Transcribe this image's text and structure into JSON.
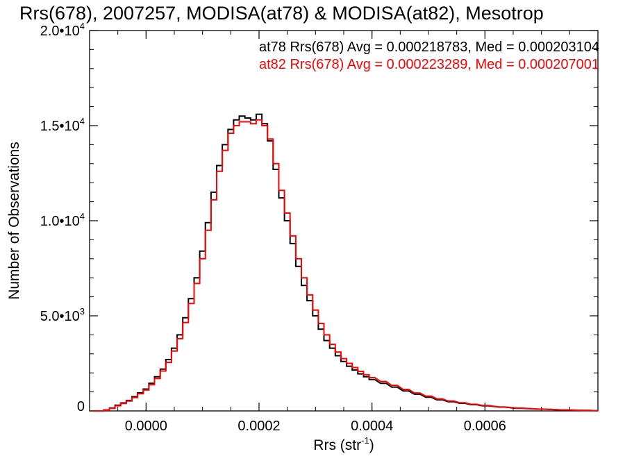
{
  "chart_data": {
    "type": "line",
    "title": "Rrs(678), 2007257, MODISA(at78) & MODISA(at82), Mesotrop",
    "xlabel": "Rrs (str",
    "xlabel_sup": "-1",
    "xlabel_tail": ")",
    "ylabel": "Number of Observations",
    "xlim": [
      -0.0001,
      0.0008
    ],
    "ylim": [
      0,
      20000
    ],
    "x_ticks": [
      {
        "value": 0.0,
        "label": "0.0000"
      },
      {
        "value": 0.0002,
        "label": "0.0002"
      },
      {
        "value": 0.0004,
        "label": "0.0004"
      },
      {
        "value": 0.0006,
        "label": "0.0006"
      }
    ],
    "y_ticks": [
      {
        "value": 0,
        "label": "0",
        "sup": ""
      },
      {
        "value": 5000,
        "label": "5.0•10",
        "sup": "3"
      },
      {
        "value": 10000,
        "label": "1.0•10",
        "sup": "4"
      },
      {
        "value": 15000,
        "label": "1.5•10",
        "sup": "4"
      },
      {
        "value": 20000,
        "label": "2.0•10",
        "sup": "4"
      }
    ],
    "legend_placement": "top-right",
    "grid": false,
    "series": [
      {
        "name": "at78",
        "color": "#000000",
        "annotation": "at78 Rrs(678) Avg = 0.000218783, Med = 0.000203104",
        "x": [
          -9e-05,
          -8e-05,
          -7e-05,
          -6e-05,
          -5e-05,
          -4e-05,
          -3e-05,
          -2e-05,
          -1e-05,
          0.0,
          1e-05,
          2e-05,
          3e-05,
          4e-05,
          5e-05,
          6e-05,
          7e-05,
          8e-05,
          9e-05,
          0.0001,
          0.00011,
          0.00012,
          0.00013,
          0.00014,
          0.00015,
          0.00016,
          0.00017,
          0.00018,
          0.00019,
          0.0002,
          0.00021,
          0.00022,
          0.00023,
          0.00024,
          0.00025,
          0.00026,
          0.00027,
          0.00028,
          0.00029,
          0.0003,
          0.00031,
          0.00032,
          0.00033,
          0.00034,
          0.00035,
          0.00036,
          0.00037,
          0.00038,
          0.00039,
          0.0004,
          0.00042,
          0.00044,
          0.00046,
          0.00048,
          0.0005,
          0.00052,
          0.00054,
          0.00056,
          0.00058,
          0.0006,
          0.00063,
          0.00066,
          0.0007,
          0.00074,
          0.00078,
          0.0008
        ],
        "y": [
          0,
          0,
          50,
          150,
          300,
          420,
          550,
          750,
          950,
          1150,
          1450,
          1800,
          2200,
          2700,
          3300,
          4000,
          4900,
          5900,
          7000,
          8400,
          9900,
          11500,
          12900,
          14000,
          14800,
          15300,
          15500,
          15400,
          15300,
          15600,
          15100,
          14200,
          12700,
          11200,
          10000,
          8800,
          7600,
          6600,
          5800,
          5000,
          4300,
          3700,
          3300,
          2900,
          2600,
          2350,
          2150,
          1950,
          1800,
          1650,
          1450,
          1250,
          1050,
          880,
          720,
          580,
          480,
          400,
          330,
          270,
          200,
          140,
          90,
          50,
          25,
          15
        ]
      },
      {
        "name": "at82",
        "color": "#ff0000",
        "annotation": "at82 Rrs(678) Avg = 0.000223289, Med = 0.000207001",
        "x": [
          -9e-05,
          -8e-05,
          -7e-05,
          -6e-05,
          -5e-05,
          -4e-05,
          -3e-05,
          -2e-05,
          -1e-05,
          0.0,
          1e-05,
          2e-05,
          3e-05,
          4e-05,
          5e-05,
          6e-05,
          7e-05,
          8e-05,
          9e-05,
          0.0001,
          0.00011,
          0.00012,
          0.00013,
          0.00014,
          0.00015,
          0.00016,
          0.00017,
          0.00018,
          0.00019,
          0.0002,
          0.00021,
          0.00022,
          0.00023,
          0.00024,
          0.00025,
          0.00026,
          0.00027,
          0.00028,
          0.00029,
          0.0003,
          0.00031,
          0.00032,
          0.00033,
          0.00034,
          0.00035,
          0.00036,
          0.00037,
          0.00038,
          0.00039,
          0.0004,
          0.00042,
          0.00044,
          0.00046,
          0.00048,
          0.0005,
          0.00052,
          0.00054,
          0.00056,
          0.00058,
          0.0006,
          0.00063,
          0.00066,
          0.0007,
          0.00074,
          0.00078,
          0.0008
        ],
        "y": [
          0,
          0,
          40,
          130,
          270,
          390,
          520,
          700,
          900,
          1100,
          1380,
          1700,
          2100,
          2550,
          3150,
          3800,
          4650,
          5650,
          6700,
          8000,
          9500,
          11100,
          12600,
          13700,
          14600,
          15000,
          15200,
          15200,
          15100,
          15300,
          15000,
          14300,
          13000,
          11600,
          10400,
          9200,
          8000,
          7000,
          6100,
          5300,
          4600,
          4000,
          3500,
          3100,
          2750,
          2500,
          2280,
          2080,
          1900,
          1750,
          1550,
          1340,
          1130,
          940,
          780,
          630,
          520,
          430,
          350,
          290,
          210,
          150,
          95,
          55,
          28,
          16
        ]
      }
    ]
  }
}
